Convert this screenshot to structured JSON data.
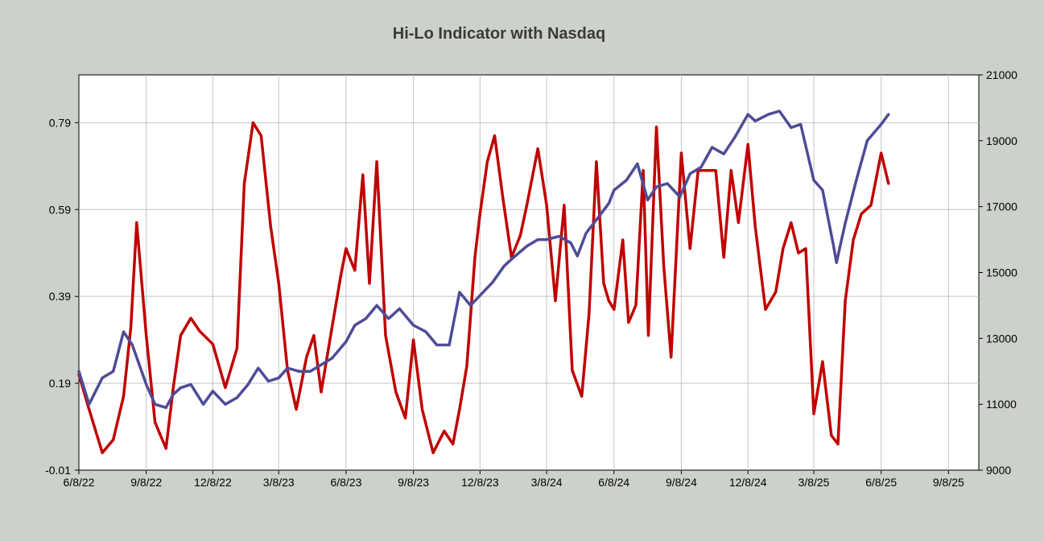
{
  "chart_data": {
    "type": "line",
    "title": "Hi-Lo Indicator with Nasdaq",
    "xlabel": "",
    "ylabel": "",
    "x_ticks": [
      "6/8/22",
      "9/8/22",
      "12/8/22",
      "3/8/23",
      "6/8/23",
      "9/8/23",
      "12/8/23",
      "3/8/24",
      "6/8/24",
      "9/8/24",
      "12/8/24",
      "3/8/25",
      "6/8/25",
      "9/8/25"
    ],
    "y_left_ticks": [
      "0.79",
      "0.59",
      "0.39",
      "0.19",
      "-0.01"
    ],
    "y_right_ticks": [
      "21000",
      "19000",
      "17000",
      "15000",
      "13000",
      "11000",
      "9000"
    ],
    "y_left_lim": [
      -0.01,
      0.9
    ],
    "y_right_lim": [
      9000,
      21000
    ],
    "grid": true,
    "legend": "none",
    "series": [
      {
        "axis": "left",
        "color": "#c00000",
        "x": [
          "2022-06-08",
          "2022-06-22",
          "2022-07-10",
          "2022-07-25",
          "2022-08-08",
          "2022-08-18",
          "2022-08-26",
          "2022-09-08",
          "2022-09-20",
          "2022-10-05",
          "2022-10-15",
          "2022-10-25",
          "2022-11-08",
          "2022-11-20",
          "2022-12-08",
          "2022-12-25",
          "2023-01-10",
          "2023-01-20",
          "2023-02-01",
          "2023-02-12",
          "2023-02-25",
          "2023-03-08",
          "2023-03-20",
          "2023-04-01",
          "2023-04-15",
          "2023-04-25",
          "2023-05-05",
          "2023-05-20",
          "2023-06-01",
          "2023-06-08",
          "2023-06-20",
          "2023-07-01",
          "2023-07-10",
          "2023-07-20",
          "2023-08-01",
          "2023-08-15",
          "2023-08-28",
          "2023-09-08",
          "2023-09-20",
          "2023-10-05",
          "2023-10-20",
          "2023-11-01",
          "2023-11-10",
          "2023-11-20",
          "2023-12-01",
          "2023-12-08",
          "2023-12-18",
          "2023-12-28",
          "2024-01-08",
          "2024-01-20",
          "2024-02-01",
          "2024-02-10",
          "2024-02-25",
          "2024-03-08",
          "2024-03-20",
          "2024-04-01",
          "2024-04-12",
          "2024-04-25",
          "2024-05-05",
          "2024-05-15",
          "2024-05-25",
          "2024-06-01",
          "2024-06-08",
          "2024-06-20",
          "2024-06-28",
          "2024-07-08",
          "2024-07-18",
          "2024-07-25",
          "2024-08-05",
          "2024-08-15",
          "2024-08-25",
          "2024-09-08",
          "2024-09-20",
          "2024-10-01",
          "2024-10-15",
          "2024-10-25",
          "2024-11-05",
          "2024-11-15",
          "2024-11-25",
          "2024-12-08",
          "2024-12-18",
          "2025-01-01",
          "2025-01-15",
          "2025-01-25",
          "2025-02-05",
          "2025-02-15",
          "2025-02-25",
          "2025-03-08",
          "2025-03-20",
          "2025-04-01",
          "2025-04-10",
          "2025-04-20",
          "2025-05-01",
          "2025-05-12",
          "2025-05-25",
          "2025-06-08",
          "2025-06-18"
        ],
        "y": [
          0.21,
          0.13,
          0.03,
          0.06,
          0.16,
          0.32,
          0.56,
          0.3,
          0.1,
          0.04,
          0.18,
          0.3,
          0.34,
          0.31,
          0.28,
          0.18,
          0.27,
          0.65,
          0.79,
          0.76,
          0.55,
          0.42,
          0.22,
          0.13,
          0.25,
          0.3,
          0.17,
          0.32,
          0.44,
          0.5,
          0.45,
          0.67,
          0.42,
          0.7,
          0.3,
          0.17,
          0.11,
          0.29,
          0.13,
          0.03,
          0.08,
          0.05,
          0.13,
          0.23,
          0.48,
          0.58,
          0.7,
          0.76,
          0.62,
          0.48,
          0.53,
          0.6,
          0.73,
          0.6,
          0.38,
          0.6,
          0.22,
          0.16,
          0.35,
          0.7,
          0.42,
          0.38,
          0.36,
          0.52,
          0.33,
          0.37,
          0.68,
          0.3,
          0.78,
          0.46,
          0.25,
          0.72,
          0.5,
          0.68,
          0.68,
          0.68,
          0.48,
          0.68,
          0.56,
          0.74,
          0.55,
          0.36,
          0.4,
          0.5,
          0.56,
          0.49,
          0.5,
          0.12,
          0.24,
          0.07,
          0.05,
          0.38,
          0.52,
          0.58,
          0.6,
          0.72,
          0.65
        ]
      },
      {
        "axis": "right",
        "color": "#4e4c96",
        "x": [
          "2022-06-08",
          "2022-06-22",
          "2022-07-10",
          "2022-07-25",
          "2022-08-08",
          "2022-08-20",
          "2022-09-08",
          "2022-09-20",
          "2022-10-05",
          "2022-10-15",
          "2022-10-25",
          "2022-11-08",
          "2022-11-25",
          "2022-12-08",
          "2022-12-25",
          "2023-01-10",
          "2023-01-25",
          "2023-02-08",
          "2023-02-22",
          "2023-03-08",
          "2023-03-20",
          "2023-04-05",
          "2023-04-20",
          "2023-05-05",
          "2023-05-20",
          "2023-06-08",
          "2023-06-20",
          "2023-07-05",
          "2023-07-20",
          "2023-08-05",
          "2023-08-20",
          "2023-09-08",
          "2023-09-25",
          "2023-10-10",
          "2023-10-27",
          "2023-11-10",
          "2023-11-25",
          "2023-12-08",
          "2023-12-25",
          "2024-01-10",
          "2024-01-25",
          "2024-02-10",
          "2024-02-25",
          "2024-03-08",
          "2024-03-25",
          "2024-04-10",
          "2024-04-19",
          "2024-05-01",
          "2024-05-15",
          "2024-06-01",
          "2024-06-08",
          "2024-06-25",
          "2024-07-10",
          "2024-07-24",
          "2024-08-05",
          "2024-08-20",
          "2024-09-06",
          "2024-09-20",
          "2024-10-05",
          "2024-10-20",
          "2024-11-05",
          "2024-11-20",
          "2024-12-08",
          "2024-12-18",
          "2025-01-05",
          "2025-01-20",
          "2025-02-05",
          "2025-02-18",
          "2025-03-08",
          "2025-03-20",
          "2025-04-04",
          "2025-04-08",
          "2025-04-20",
          "2025-05-05",
          "2025-05-20",
          "2025-06-08",
          "2025-06-18"
        ],
        "y": [
          12000,
          11000,
          11800,
          12000,
          13200,
          12800,
          11600,
          11000,
          10900,
          11300,
          11500,
          11600,
          11000,
          11400,
          11000,
          11200,
          11600,
          12100,
          11700,
          11800,
          12100,
          12000,
          12000,
          12200,
          12400,
          12900,
          13400,
          13600,
          14000,
          13600,
          13900,
          13400,
          13200,
          12800,
          12800,
          14400,
          14000,
          14300,
          14700,
          15200,
          15500,
          15800,
          16000,
          16000,
          16100,
          15900,
          15500,
          16200,
          16600,
          17100,
          17500,
          17800,
          18300,
          17200,
          17600,
          17700,
          17300,
          18000,
          18200,
          18800,
          18600,
          19100,
          19800,
          19600,
          19800,
          19900,
          19400,
          19500,
          17800,
          17500,
          15800,
          15300,
          16500,
          17800,
          19000,
          19500,
          19800
        ]
      }
    ]
  }
}
